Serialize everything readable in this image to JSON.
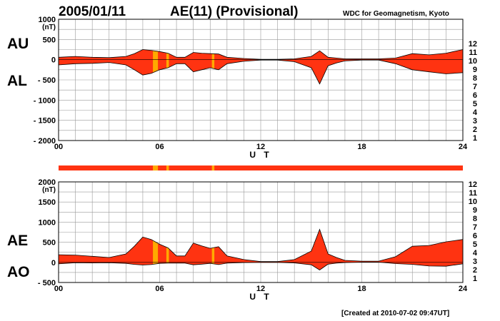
{
  "header": {
    "date": "2005/01/11",
    "title": "AE(11) (Provisional)",
    "source": "WDC for Geomagnetism, Kyoto"
  },
  "footer": {
    "created": "[Created at 2010-07-02 09:47UT]"
  },
  "colors": {
    "fill": "#ff3311",
    "highlight": "#ffaa00",
    "grid": "#999999",
    "levels": [
      "#cc0066",
      "#ff0000",
      "#ff9900",
      "#cccc00",
      "#66dd00",
      "#00cccc",
      "#0077ff",
      "#0000cc",
      "#9900cc",
      "#000000",
      "#777777",
      "#bbbbbb"
    ]
  },
  "chart_data": [
    {
      "id": "top",
      "type": "area",
      "series": [
        {
          "name": "AU",
          "x": [
            0,
            1,
            2,
            3,
            4,
            4.5,
            5,
            5.5,
            6,
            6.5,
            7,
            7.5,
            8,
            8.5,
            9,
            9.5,
            10,
            11,
            12,
            13,
            14,
            15,
            15.5,
            16,
            16.5,
            17,
            18,
            19,
            20,
            21,
            22,
            23,
            24
          ],
          "y": [
            60,
            80,
            60,
            50,
            80,
            150,
            250,
            230,
            200,
            160,
            60,
            60,
            180,
            160,
            150,
            140,
            60,
            30,
            10,
            10,
            20,
            80,
            220,
            60,
            40,
            20,
            20,
            20,
            40,
            150,
            120,
            160,
            250
          ]
        },
        {
          "name": "AL",
          "x": [
            0,
            1,
            2,
            3,
            4,
            4.5,
            5,
            5.5,
            6,
            6.5,
            7,
            7.5,
            8,
            8.5,
            9,
            9.5,
            10,
            11,
            12,
            13,
            14,
            15,
            15.5,
            16,
            16.5,
            17,
            18,
            19,
            20,
            21,
            22,
            23,
            24
          ],
          "y": [
            -130,
            -100,
            -90,
            -70,
            -130,
            -250,
            -380,
            -340,
            -250,
            -200,
            -100,
            -100,
            -300,
            -250,
            -200,
            -250,
            -100,
            -40,
            -10,
            -10,
            -50,
            -200,
            -600,
            -150,
            -80,
            -30,
            -10,
            -10,
            -100,
            -250,
            -300,
            -350,
            -320
          ]
        }
      ],
      "labels": {
        "upper": "AU",
        "lower": "AL",
        "unit": "(nT)"
      },
      "xlabel": "U T",
      "xticks": [
        "00",
        "06",
        "12",
        "18",
        "24"
      ],
      "yticks": [
        "1000",
        "500",
        "0",
        "- 500",
        "- 1000",
        "- 1500",
        "- 2000"
      ],
      "xlim": [
        0,
        24
      ],
      "ylim": [
        -2000,
        1000
      ],
      "grid": true
    },
    {
      "id": "bottom",
      "type": "area",
      "series": [
        {
          "name": "AE",
          "x": [
            0,
            1,
            2,
            3,
            4,
            4.5,
            5,
            5.5,
            6,
            6.5,
            7,
            7.5,
            8,
            8.5,
            9,
            9.5,
            10,
            11,
            12,
            13,
            14,
            15,
            15.5,
            16,
            16.5,
            17,
            18,
            19,
            20,
            21,
            22,
            23,
            24
          ],
          "y": [
            190,
            180,
            150,
            120,
            210,
            400,
            630,
            570,
            450,
            360,
            160,
            160,
            480,
            410,
            350,
            390,
            160,
            70,
            20,
            20,
            70,
            280,
            820,
            210,
            120,
            50,
            30,
            30,
            140,
            400,
            420,
            510,
            570
          ]
        },
        {
          "name": "AO",
          "x": [
            0,
            1,
            2,
            3,
            4,
            4.5,
            5,
            5.5,
            6,
            6.5,
            7,
            7.5,
            8,
            8.5,
            9,
            9.5,
            10,
            11,
            12,
            13,
            14,
            15,
            15.5,
            16,
            16.5,
            17,
            18,
            19,
            20,
            21,
            22,
            23,
            24
          ],
          "y": [
            -35,
            -10,
            -15,
            -10,
            -25,
            -50,
            -65,
            -55,
            -25,
            -20,
            -20,
            -20,
            -60,
            -45,
            -25,
            -55,
            -20,
            -5,
            0,
            0,
            -15,
            -60,
            -190,
            -45,
            -20,
            -5,
            5,
            5,
            -30,
            -50,
            -90,
            -95,
            -35
          ]
        }
      ],
      "labels": {
        "upper": "AE",
        "lower": "AO",
        "unit": "(nT)"
      },
      "xlabel": "U T",
      "xticks": [
        "00",
        "06",
        "12",
        "18",
        "24"
      ],
      "yticks": [
        "2000",
        "1500",
        "1000",
        "500",
        "0",
        "- 500"
      ],
      "xlim": [
        0,
        24
      ],
      "ylim": [
        -500,
        2000
      ],
      "grid": true
    }
  ],
  "highlight_intervals": [
    [
      5.6,
      5.9
    ],
    [
      6.4,
      6.55
    ],
    [
      9.1,
      9.25
    ]
  ],
  "level_legend": [
    "12",
    "11",
    "10",
    "9",
    "8",
    "7",
    "6",
    "5",
    "4",
    "3",
    "2",
    "1"
  ]
}
